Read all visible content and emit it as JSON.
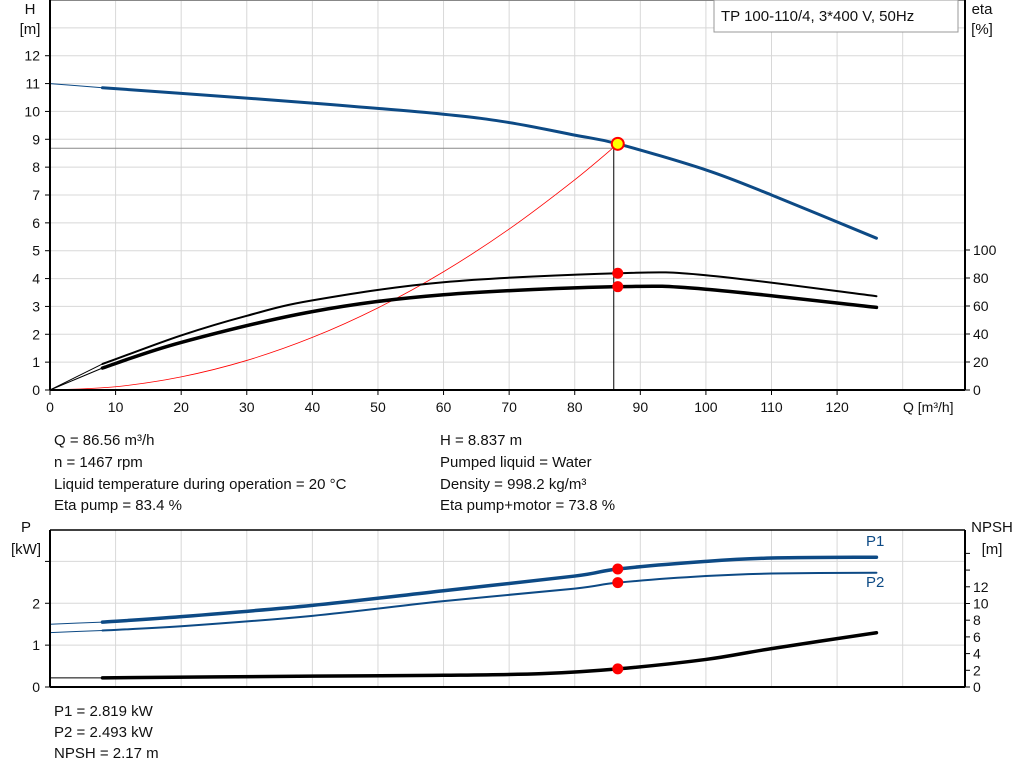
{
  "title_box": "TP 100-110/4, 3*400 V, 50Hz",
  "colors": {
    "blue": "#0d4a85",
    "black": "#000000",
    "red": "#ff0000",
    "marker_yellow": "#ffff00",
    "grid": "#d8d8d8"
  },
  "info_top": [
    "Q = 86.56 m³/h",
    "n = 1467 rpm",
    "Liquid temperature during operation = 20 °C",
    "Eta pump = 83.4 %",
    "H = 8.837 m",
    "Pumped liquid = Water",
    "Density = 998.2 kg/m³",
    "Eta pump+motor = 73.8 %"
  ],
  "info_bottom": [
    "P1 = 2.819 kW",
    "P2 = 2.493 kW",
    "NPSH = 2.17 m"
  ],
  "chart_data": [
    {
      "type": "line",
      "xlabel": "Q [m³/h]",
      "ylabel": [
        "H",
        "[m]"
      ],
      "y2label": [
        "eta",
        "[%]"
      ],
      "xlim": [
        0,
        139.5
      ],
      "ylim": [
        0,
        14
      ],
      "y2lim": [
        0,
        100
      ],
      "xticks": [
        0,
        10,
        20,
        30,
        40,
        50,
        60,
        70,
        80,
        90,
        100,
        110,
        120
      ],
      "yticks": [
        0,
        1,
        2,
        3,
        4,
        5,
        6,
        7,
        8,
        9,
        10,
        11,
        12
      ],
      "y2ticks": [
        0,
        20,
        40,
        60,
        80,
        100
      ],
      "grid": true,
      "operating_point": {
        "Q": 86.56,
        "H": 8.837,
        "eta_pump": 83.4,
        "eta_pump_motor": 73.8,
        "H_guide": 8.68
      },
      "series": [
        {
          "key": "H",
          "axis": "y",
          "color": "#0d4a85",
          "x": [
            0,
            8,
            20,
            40,
            60,
            70,
            80,
            86.56,
            100,
            110,
            126
          ],
          "values": [
            11.0,
            10.85,
            10.65,
            10.3,
            9.9,
            9.6,
            9.15,
            8.837,
            7.9,
            7.0,
            5.45
          ]
        },
        {
          "key": "eta_pump",
          "axis": "y2",
          "color": "#000000",
          "x": [
            0,
            8,
            10,
            20,
            30,
            40,
            60,
            86.56,
            100,
            126
          ],
          "values": [
            0,
            18.6,
            22,
            39,
            53,
            64,
            77,
            83.4,
            82,
            67
          ]
        },
        {
          "key": "eta_pump_motor",
          "axis": "y2",
          "color": "#000000",
          "x": [
            0,
            8,
            20,
            40,
            60,
            86.56,
            100,
            126
          ],
          "values": [
            0,
            15.7,
            34,
            56,
            68,
            73.8,
            72,
            59
          ]
        },
        {
          "key": "system_curve",
          "axis": "y",
          "color": "#ff0000",
          "x": [
            0,
            10,
            20,
            30,
            40,
            50,
            60,
            70,
            80,
            86.56
          ],
          "values": [
            0,
            0.118,
            0.472,
            1.061,
            1.887,
            2.948,
            4.245,
            5.778,
            7.547,
            8.837
          ]
        }
      ]
    },
    {
      "type": "line",
      "ylabel": [
        "P",
        "[kW]"
      ],
      "y2label": [
        "NPSH",
        "[m]"
      ],
      "xlim": [
        0,
        139.5
      ],
      "ylim": [
        0,
        3.75
      ],
      "y2lim": [
        0,
        18.8
      ],
      "yticks": [
        0,
        1,
        2,
        3
      ],
      "yticklabels": [
        "0",
        "1",
        "2",
        ""
      ],
      "y2ticks": [
        0,
        2,
        4,
        6,
        8,
        10,
        12,
        14,
        16
      ],
      "y2ticklabels": [
        "0",
        "2",
        "4",
        "6",
        "8",
        "10",
        "12",
        "",
        ""
      ],
      "grid": true,
      "series": [
        {
          "name": "P1",
          "axis": "y",
          "color": "#0d4a85",
          "x": [
            0,
            8,
            20,
            40,
            60,
            80,
            86.56,
            100,
            110,
            126
          ],
          "values": [
            1.5,
            1.55,
            1.68,
            1.95,
            2.3,
            2.65,
            2.819,
            3.0,
            3.08,
            3.1
          ]
        },
        {
          "name": "P2",
          "axis": "y",
          "color": "#0d4a85",
          "x": [
            0,
            8,
            20,
            40,
            60,
            80,
            86.56,
            100,
            110,
            126
          ],
          "values": [
            1.3,
            1.35,
            1.45,
            1.7,
            2.05,
            2.35,
            2.493,
            2.65,
            2.71,
            2.73
          ]
        },
        {
          "key": "NPSH",
          "axis": "y2",
          "color": "#000000",
          "x": [
            0,
            8,
            40,
            60,
            75,
            86.56,
            100,
            110,
            126
          ],
          "values": [
            1.1,
            1.1,
            1.3,
            1.4,
            1.6,
            2.17,
            3.3,
            4.6,
            6.5
          ]
        }
      ],
      "operating_point": {
        "Q": 86.56,
        "P1": 2.819,
        "P2": 2.493,
        "NPSH": 2.17
      }
    }
  ]
}
